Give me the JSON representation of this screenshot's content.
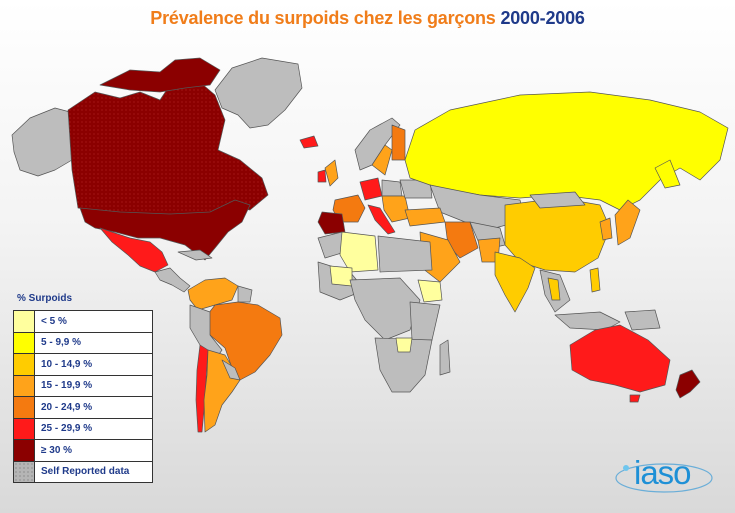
{
  "title": {
    "main": "Prévalence du surpoids chez les garçons",
    "years": "2000-2006"
  },
  "legend": {
    "title": "% Surpoids",
    "items": [
      {
        "label": "< 5 %",
        "color": "#ffff9e"
      },
      {
        "label": "5 - 9,9 %",
        "color": "#ffff00"
      },
      {
        "label": "10 - 14,9 %",
        "color": "#ffcc00"
      },
      {
        "label": "15 - 19,9 %",
        "color": "#ffa31a"
      },
      {
        "label": "20 - 24,9 %",
        "color": "#f47a10"
      },
      {
        "label": "25 - 29,9 %",
        "color": "#ff1a1a"
      },
      {
        "label": "≥ 30 %",
        "color": "#8b0000"
      },
      {
        "label": "Self Reported data",
        "color": "#b5b5b5"
      }
    ]
  },
  "colors": {
    "no_data": "#bdbdbd",
    "border": "#555555",
    "background_top": "#ffffff",
    "background_bottom": "#d9d9d9"
  },
  "regions": [
    {
      "name": "Canada / USA",
      "category": "≥ 30 %"
    },
    {
      "name": "Mexico",
      "category": "25 - 29,9 %"
    },
    {
      "name": "Chile",
      "category": "25 - 29,9 %"
    },
    {
      "name": "Brazil",
      "category": "20 - 24,9 %"
    },
    {
      "name": "Argentina",
      "category": "15 - 19,9 %"
    },
    {
      "name": "Russia",
      "category": "5 - 9,9 %"
    },
    {
      "name": "China",
      "category": "10 - 14,9 %"
    },
    {
      "name": "India",
      "category": "10 - 14,9 %"
    },
    {
      "name": "Iran",
      "category": "20 - 24,9 %"
    },
    {
      "name": "Australia",
      "category": "25 - 29,9 %"
    },
    {
      "name": "New Zealand",
      "category": "≥ 30 %"
    },
    {
      "name": "Japan",
      "category": "15 - 19,9 %"
    },
    {
      "name": "Spain",
      "category": "≥ 30 %"
    },
    {
      "name": "Algeria / Mali",
      "category": "< 5 %"
    },
    {
      "name": "Ethiopia",
      "category": "< 5 %"
    }
  ],
  "logo": {
    "text": "iaso"
  }
}
